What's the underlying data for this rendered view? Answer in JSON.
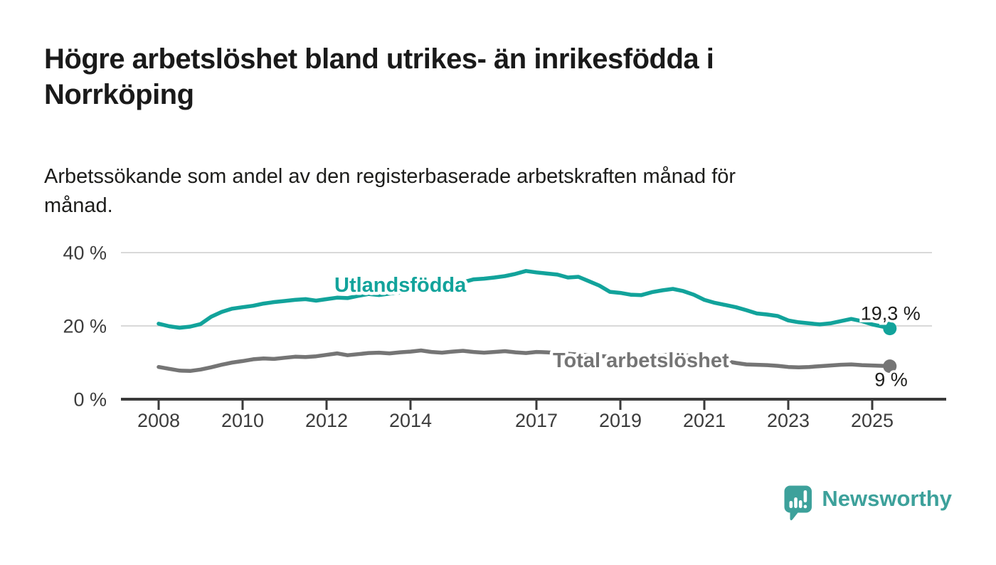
{
  "header": {
    "title": "Högre arbetslöshet bland utrikes- än inrikesfödda i\nNorrköping",
    "subtitle": "Arbetssökande som andel av den registerbaserade arbetskraften månad för\nmånad."
  },
  "colors": {
    "series_foreign_born": "#12a39b",
    "series_total": "#757575",
    "axis": "#3a3a3a",
    "grid": "#d9d9d9",
    "tick_label": "#3c3c3c",
    "end_label_text": "#1d1d1b",
    "brand_teal": "#3da19b"
  },
  "chart_data": {
    "type": "line",
    "title": "Högre arbetslöshet bland utrikes- än inrikesfödda i Norrköping",
    "subtitle": "Arbetssökande som andel av den registerbaserade arbetskraften månad för månad.",
    "xlabel": "",
    "ylabel": "",
    "xlim": [
      2007.0,
      2026.5
    ],
    "ylim": [
      0,
      44
    ],
    "grid": "horizontal",
    "legend_position": "inline-labels",
    "yticks": [
      {
        "value": 0,
        "label": "0 %"
      },
      {
        "value": 20,
        "label": "20 %"
      },
      {
        "value": 40,
        "label": "40 %"
      }
    ],
    "xticks": [
      {
        "value": 2008,
        "label": "2008"
      },
      {
        "value": 2010,
        "label": "2010"
      },
      {
        "value": 2012,
        "label": "2012"
      },
      {
        "value": 2014,
        "label": "2014"
      },
      {
        "value": 2017,
        "label": "2017"
      },
      {
        "value": 2019,
        "label": "2019"
      },
      {
        "value": 2021,
        "label": "2021"
      },
      {
        "value": 2023,
        "label": "2023"
      },
      {
        "value": 2025,
        "label": "2025"
      }
    ],
    "series": [
      {
        "name": "Utlandsfödda",
        "color": "#12a39b",
        "end_label": "19,3 %",
        "end_value": 19.3,
        "points": [
          [
            2008.0,
            20.6
          ],
          [
            2008.25,
            19.9
          ],
          [
            2008.5,
            19.5
          ],
          [
            2008.75,
            19.8
          ],
          [
            2009.0,
            20.5
          ],
          [
            2009.25,
            22.5
          ],
          [
            2009.5,
            23.8
          ],
          [
            2009.75,
            24.7
          ],
          [
            2010.0,
            25.1
          ],
          [
            2010.25,
            25.5
          ],
          [
            2010.5,
            26.1
          ],
          [
            2010.75,
            26.5
          ],
          [
            2011.0,
            26.8
          ],
          [
            2011.25,
            27.1
          ],
          [
            2011.5,
            27.3
          ],
          [
            2011.75,
            26.9
          ],
          [
            2012.0,
            27.3
          ],
          [
            2012.25,
            27.7
          ],
          [
            2012.5,
            27.6
          ],
          [
            2012.75,
            28.2
          ],
          [
            2013.0,
            28.7
          ],
          [
            2013.25,
            28.4
          ],
          [
            2013.5,
            28.8
          ],
          [
            2013.75,
            29.1
          ],
          [
            2014.0,
            29.3
          ],
          [
            2014.25,
            29.6
          ],
          [
            2014.5,
            30.1
          ],
          [
            2014.75,
            30.6
          ],
          [
            2015.0,
            31.2
          ],
          [
            2015.25,
            31.9
          ],
          [
            2015.5,
            32.7
          ],
          [
            2015.75,
            32.9
          ],
          [
            2016.0,
            33.2
          ],
          [
            2016.25,
            33.6
          ],
          [
            2016.5,
            34.2
          ],
          [
            2016.75,
            35.0
          ],
          [
            2017.0,
            34.6
          ],
          [
            2017.25,
            34.3
          ],
          [
            2017.5,
            34.0
          ],
          [
            2017.75,
            33.2
          ],
          [
            2018.0,
            33.4
          ],
          [
            2018.25,
            32.2
          ],
          [
            2018.5,
            31.0
          ],
          [
            2018.75,
            29.3
          ],
          [
            2019.0,
            29.0
          ],
          [
            2019.25,
            28.5
          ],
          [
            2019.5,
            28.4
          ],
          [
            2019.75,
            29.2
          ],
          [
            2020.0,
            29.7
          ],
          [
            2020.25,
            30.1
          ],
          [
            2020.5,
            29.5
          ],
          [
            2020.75,
            28.5
          ],
          [
            2021.0,
            27.1
          ],
          [
            2021.25,
            26.3
          ],
          [
            2021.5,
            25.7
          ],
          [
            2021.75,
            25.1
          ],
          [
            2022.0,
            24.3
          ],
          [
            2022.25,
            23.4
          ],
          [
            2022.5,
            23.1
          ],
          [
            2022.75,
            22.7
          ],
          [
            2023.0,
            21.5
          ],
          [
            2023.25,
            21.0
          ],
          [
            2023.5,
            20.7
          ],
          [
            2023.75,
            20.4
          ],
          [
            2024.0,
            20.7
          ],
          [
            2024.25,
            21.3
          ],
          [
            2024.5,
            21.9
          ],
          [
            2024.75,
            21.3
          ],
          [
            2025.0,
            20.4
          ],
          [
            2025.25,
            19.8
          ],
          [
            2025.42,
            19.3
          ]
        ]
      },
      {
        "name": "Total arbetslöshet",
        "color": "#757575",
        "end_label": "9 %",
        "end_value": 9.0,
        "points": [
          [
            2008.0,
            8.8
          ],
          [
            2008.25,
            8.3
          ],
          [
            2008.5,
            7.8
          ],
          [
            2008.75,
            7.7
          ],
          [
            2009.0,
            8.1
          ],
          [
            2009.25,
            8.7
          ],
          [
            2009.5,
            9.4
          ],
          [
            2009.75,
            10.0
          ],
          [
            2010.0,
            10.4
          ],
          [
            2010.25,
            10.9
          ],
          [
            2010.5,
            11.1
          ],
          [
            2010.75,
            11.0
          ],
          [
            2011.0,
            11.3
          ],
          [
            2011.25,
            11.6
          ],
          [
            2011.5,
            11.5
          ],
          [
            2011.75,
            11.7
          ],
          [
            2012.0,
            12.1
          ],
          [
            2012.25,
            12.5
          ],
          [
            2012.5,
            12.0
          ],
          [
            2012.75,
            12.3
          ],
          [
            2013.0,
            12.6
          ],
          [
            2013.25,
            12.7
          ],
          [
            2013.5,
            12.5
          ],
          [
            2013.75,
            12.8
          ],
          [
            2014.0,
            13.0
          ],
          [
            2014.25,
            13.3
          ],
          [
            2014.5,
            12.9
          ],
          [
            2014.75,
            12.7
          ],
          [
            2015.0,
            13.0
          ],
          [
            2015.25,
            13.2
          ],
          [
            2015.5,
            12.9
          ],
          [
            2015.75,
            12.7
          ],
          [
            2016.0,
            12.9
          ],
          [
            2016.25,
            13.1
          ],
          [
            2016.5,
            12.8
          ],
          [
            2016.75,
            12.6
          ],
          [
            2017.0,
            12.9
          ],
          [
            2017.25,
            12.8
          ],
          [
            2017.5,
            12.6
          ],
          [
            2017.75,
            12.4
          ],
          [
            2018.0,
            12.2
          ],
          [
            2018.25,
            12.0
          ],
          [
            2018.5,
            11.8
          ],
          [
            2018.75,
            11.6
          ],
          [
            2019.0,
            11.4
          ],
          [
            2019.25,
            11.3
          ],
          [
            2019.5,
            11.4
          ],
          [
            2019.75,
            11.7
          ],
          [
            2020.0,
            12.0
          ],
          [
            2020.25,
            12.3
          ],
          [
            2020.5,
            12.1
          ],
          [
            2020.75,
            11.7
          ],
          [
            2021.0,
            11.3
          ],
          [
            2021.25,
            10.9
          ],
          [
            2021.5,
            10.4
          ],
          [
            2021.75,
            9.9
          ],
          [
            2022.0,
            9.5
          ],
          [
            2022.25,
            9.4
          ],
          [
            2022.5,
            9.3
          ],
          [
            2022.75,
            9.1
          ],
          [
            2023.0,
            8.8
          ],
          [
            2023.25,
            8.7
          ],
          [
            2023.5,
            8.8
          ],
          [
            2023.75,
            9.0
          ],
          [
            2024.0,
            9.2
          ],
          [
            2024.25,
            9.4
          ],
          [
            2024.5,
            9.5
          ],
          [
            2024.75,
            9.3
          ],
          [
            2025.0,
            9.2
          ],
          [
            2025.25,
            9.1
          ],
          [
            2025.42,
            9.0
          ]
        ]
      }
    ]
  },
  "footer": {
    "brand": "Newsworthy"
  }
}
